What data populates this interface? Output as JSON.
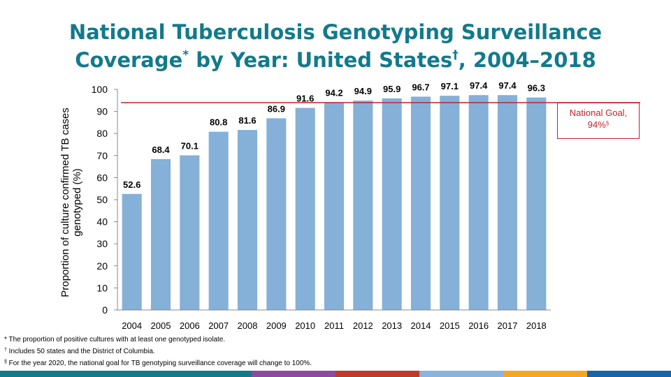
{
  "title": {
    "line1": "National Tuberculosis Genotyping Surveillance",
    "line2a": "Coverage",
    "mark1": "*",
    "line2b": " by Year: United States",
    "mark2": "†",
    "line2c": ", 2004–2018"
  },
  "goal": {
    "text": "National Goal,",
    "value_text": "94%",
    "mark": "§",
    "value": 94,
    "color": "#c0232c"
  },
  "footnotes": [
    {
      "mark": "*",
      "text": " The proportion of positive cultures with at least one genotyped isolate."
    },
    {
      "mark": "†",
      "text": " Includes 50 states and the District of Columbia."
    },
    {
      "mark": "§",
      "text": " For the year 2020, the national goal for TB genotyping surveillance coverage will change to 100%."
    }
  ],
  "colors": {
    "title": "#127a8a",
    "bar": "#85b0d8",
    "goal_line": "#c0232c",
    "footer_segments": [
      "#127a8a",
      "#127a8a",
      "#127a8a",
      "#8e4a9e",
      "#c0392b",
      "#8ab4dc",
      "#f5a623",
      "#1565a8"
    ]
  },
  "chart_data": {
    "type": "bar",
    "ylabel": "Proportion of culture confirmed TB cases genotyped (%)",
    "ylim": [
      0,
      100
    ],
    "yticks": [
      0,
      10,
      20,
      30,
      40,
      50,
      60,
      70,
      80,
      90,
      100
    ],
    "categories": [
      "2004",
      "2005",
      "2006",
      "2007",
      "2008",
      "2009",
      "2010",
      "2011",
      "2012",
      "2013",
      "2014",
      "2015",
      "2016",
      "2017",
      "2018"
    ],
    "values": [
      52.6,
      68.4,
      70.1,
      80.8,
      81.6,
      86.9,
      91.6,
      94.2,
      94.9,
      95.9,
      96.7,
      97.1,
      97.4,
      97.4,
      96.3
    ],
    "data_labels": [
      "52.6",
      "68.4",
      "70.1",
      "80.8",
      "81.6",
      "86.9",
      "91.6",
      "94.2",
      "94.9",
      "95.9",
      "96.7",
      "97.1",
      "97.4",
      "97.4",
      "96.3"
    ],
    "reference_line": {
      "value": 94
    },
    "grid": false,
    "legend": "none"
  }
}
